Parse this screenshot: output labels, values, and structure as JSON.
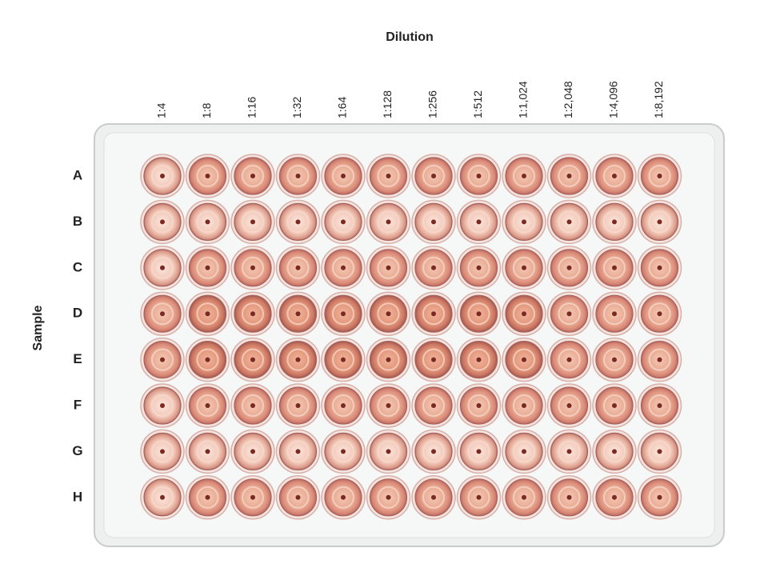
{
  "header": {
    "title": "Dilution",
    "column_labels": [
      "1:4",
      "1:8",
      "1:16",
      "1:32",
      "1:64",
      "1:128",
      "1:256",
      "1:512",
      "1:1,024",
      "1:2,048",
      "1:4,096",
      "1:8,192"
    ]
  },
  "side": {
    "title": "Sample",
    "row_labels": [
      "A",
      "B",
      "C",
      "D",
      "E",
      "F",
      "G",
      "H"
    ]
  }
}
